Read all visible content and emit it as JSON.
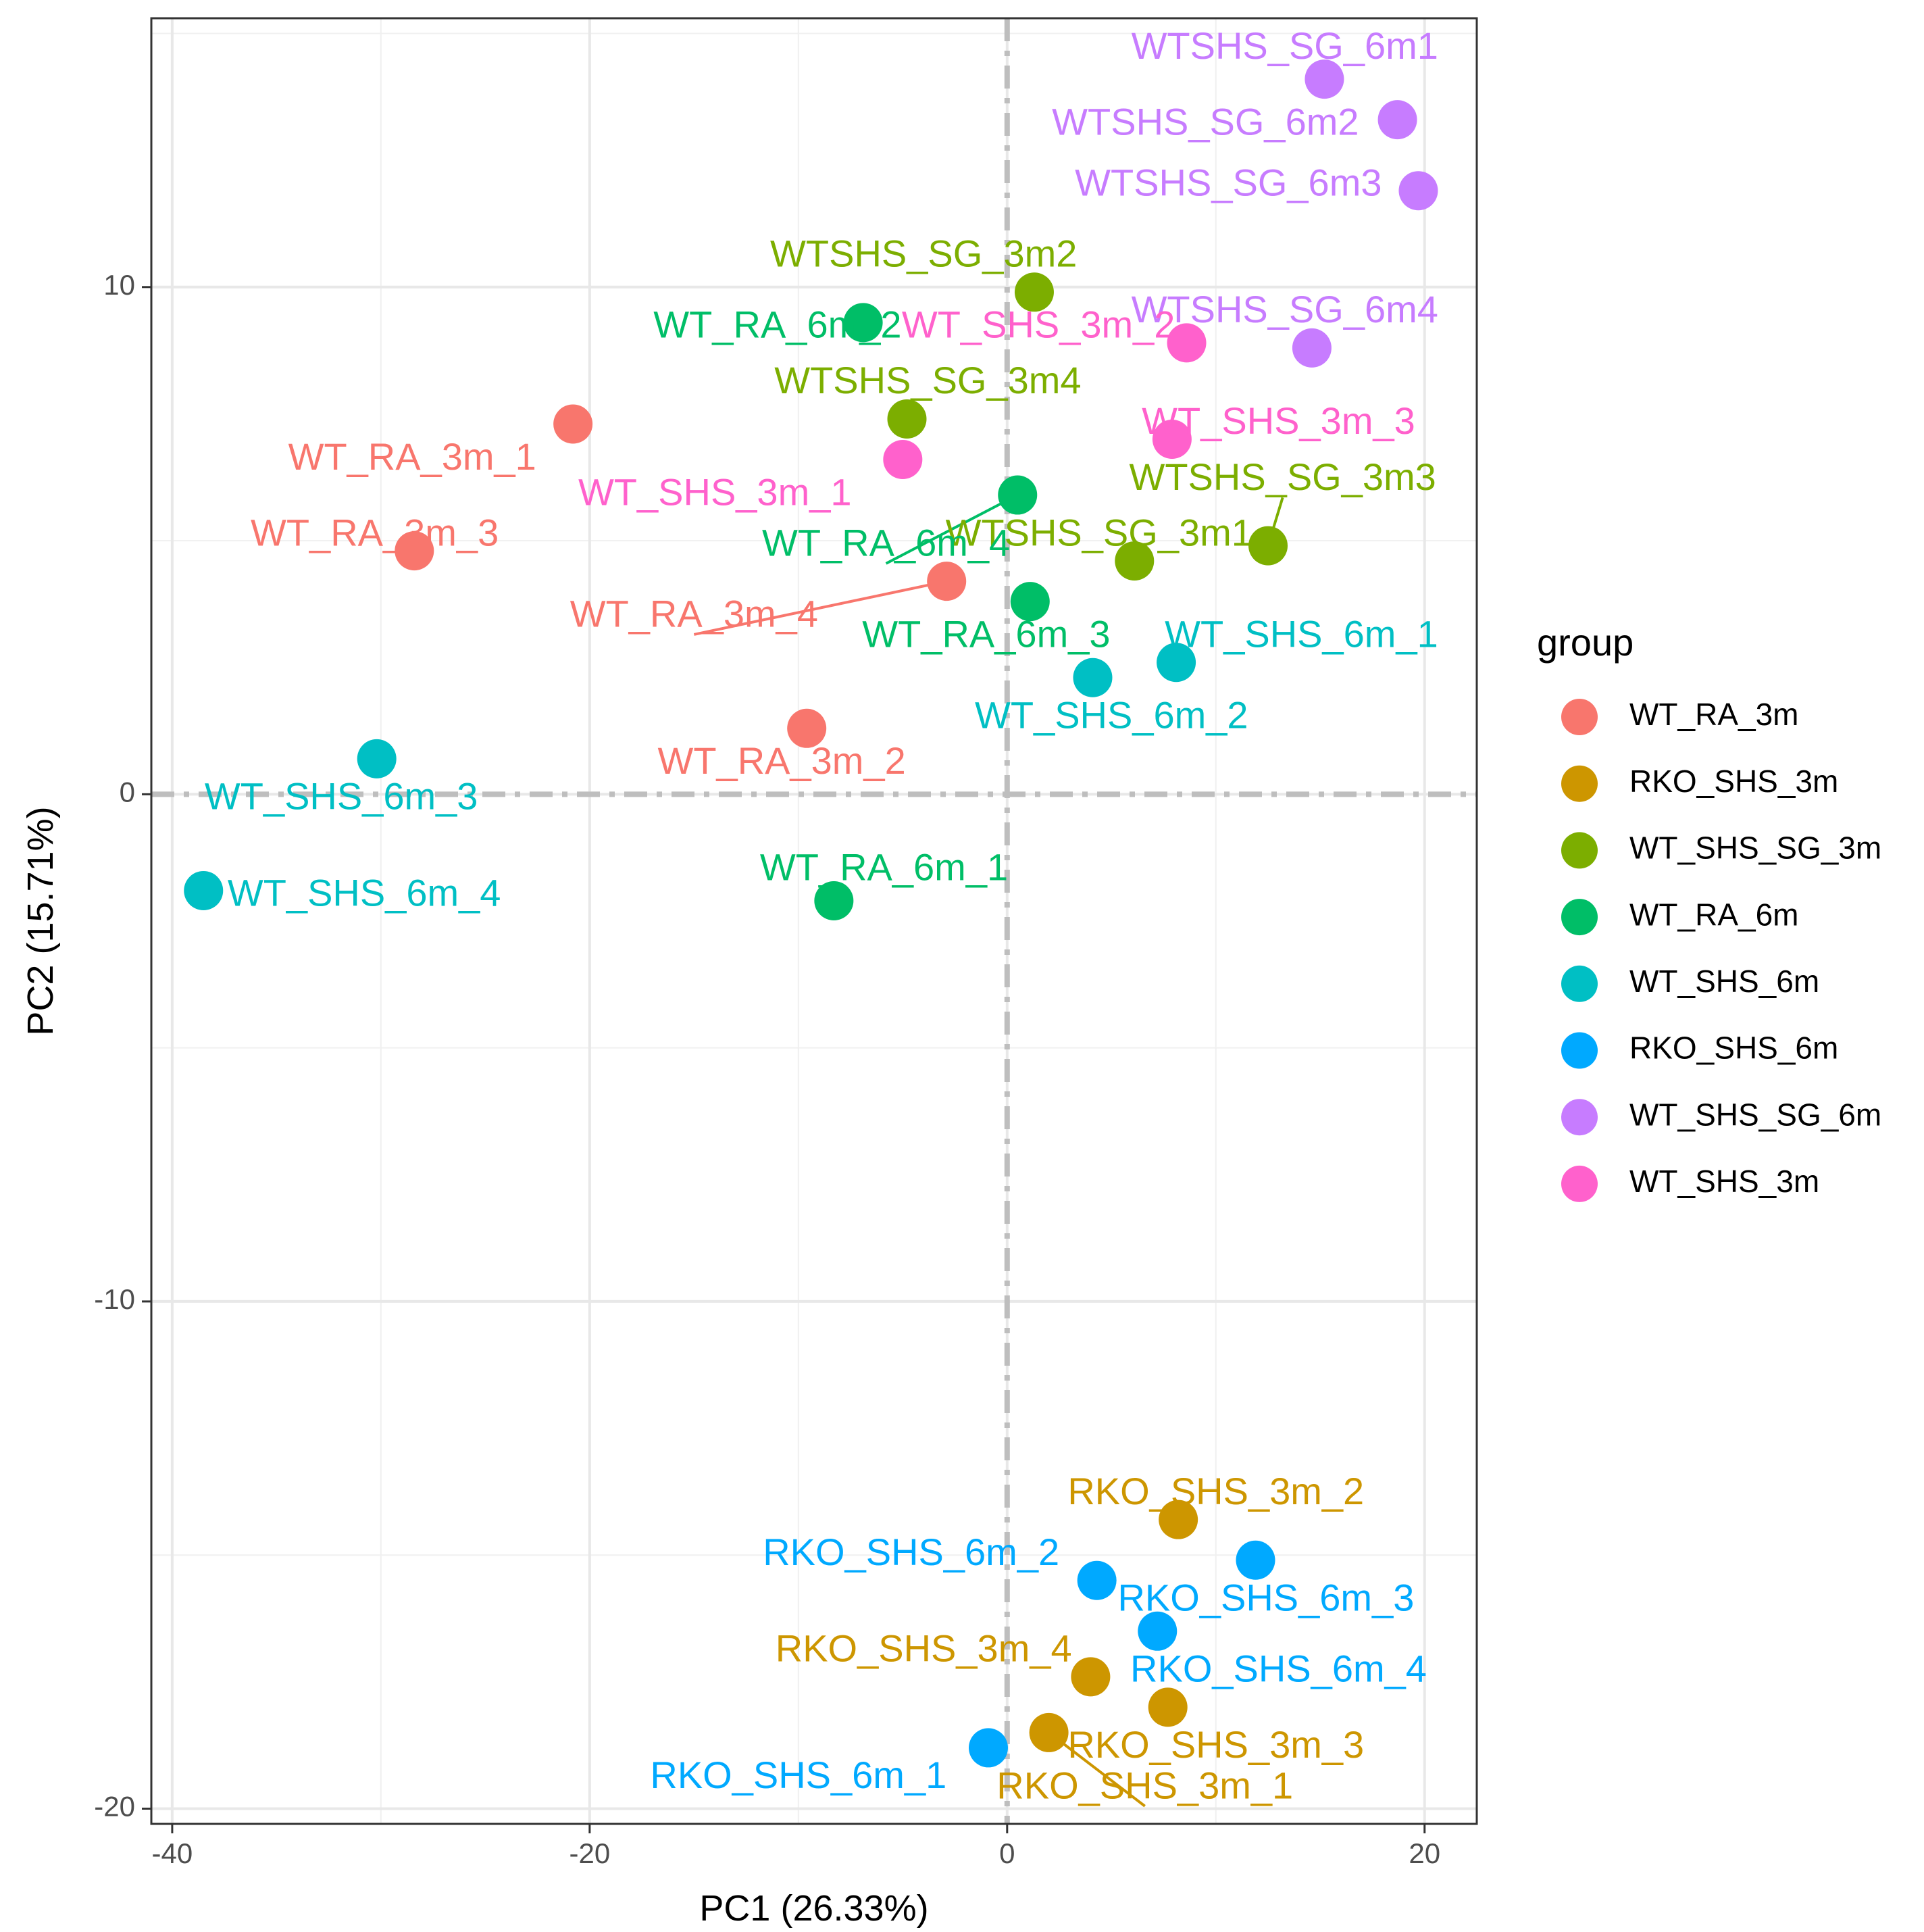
{
  "chart_data": {
    "type": "scatter",
    "title": "",
    "xlabel": "PC1 (26.33%)",
    "ylabel": "PC2 (15.71%)",
    "xlim": [
      -41,
      22.5
    ],
    "ylim": [
      -20.3,
      15.3
    ],
    "x_ticks": [
      -40,
      -20,
      0,
      20
    ],
    "x_tick_labels": [
      "-40",
      "-20",
      "0",
      "20"
    ],
    "y_ticks": [
      -20,
      -10,
      0,
      10
    ],
    "y_tick_labels": [
      "-20",
      "-10",
      "0",
      "10"
    ],
    "grid": true,
    "reference_lines": {
      "x": 0,
      "y": 0
    },
    "legend": {
      "title": "group",
      "position": "right",
      "entries": [
        {
          "label": "WT_RA_3m",
          "color": "#F8766D"
        },
        {
          "label": "RKO_SHS_3m",
          "color": "#CD9600"
        },
        {
          "label": "WT_SHS_SG_3m",
          "color": "#7CAE00"
        },
        {
          "label": "WT_RA_6m",
          "color": "#00BE67"
        },
        {
          "label": "WT_SHS_6m",
          "color": "#00BFC4"
        },
        {
          "label": "RKO_SHS_6m",
          "color": "#00A9FF"
        },
        {
          "label": "WT_SHS_SG_6m",
          "color": "#C77CFF"
        },
        {
          "label": "WT_SHS_3m",
          "color": "#FF61CC"
        }
      ]
    },
    "series": [
      {
        "name": "WT_RA_3m",
        "color": "#F8766D",
        "points": [
          {
            "x": -20.8,
            "y": 7.3,
            "label": "WT_RA_3m_1",
            "lx": -28.5,
            "ly": 6.6
          },
          {
            "x": -9.6,
            "y": 1.3,
            "label": "WT_RA_3m_2",
            "lx": -10.8,
            "ly": 0.6
          },
          {
            "x": -28.4,
            "y": 4.8,
            "label": "WT_RA_3m_3",
            "lx": -30.3,
            "ly": 5.1
          },
          {
            "x": -2.9,
            "y": 4.2,
            "label": "WT_RA_3m_4",
            "lx": -15.0,
            "ly": 3.5
          }
        ]
      },
      {
        "name": "RKO_SHS_3m",
        "color": "#CD9600",
        "points": [
          {
            "x": 2.0,
            "y": -18.5,
            "label": "RKO_SHS_3m_1",
            "lx": 6.6,
            "ly": -19.6
          },
          {
            "x": 8.2,
            "y": -14.3,
            "label": "RKO_SHS_3m_2",
            "lx": 10.0,
            "ly": -13.8
          },
          {
            "x": 7.7,
            "y": -18.0,
            "label": "RKO_SHS_3m_3",
            "lx": 10.0,
            "ly": -18.8
          },
          {
            "x": 4.0,
            "y": -17.4,
            "label": "RKO_SHS_3m_4",
            "lx": -4.0,
            "ly": -16.9
          }
        ]
      },
      {
        "name": "WT_SHS_SG_3m",
        "color": "#7CAE00",
        "points": [
          {
            "x": 6.1,
            "y": 4.6,
            "label": "WTSHS_SG_3m1",
            "lx": 4.4,
            "ly": 5.1
          },
          {
            "x": 1.3,
            "y": 9.9,
            "label": "WTSHS_SG_3m2",
            "lx": -4.0,
            "ly": 10.6
          },
          {
            "x": 12.5,
            "y": 4.9,
            "label": "WTSHS_SG_3m3",
            "lx": 13.2,
            "ly": 6.2
          },
          {
            "x": -4.8,
            "y": 7.4,
            "label": "WTSHS_SG_3m4",
            "lx": -3.8,
            "ly": 8.1
          }
        ]
      },
      {
        "name": "WT_RA_6m",
        "color": "#00BE67",
        "points": [
          {
            "x": -8.3,
            "y": -2.1,
            "label": "WT_RA_6m_1",
            "lx": -5.9,
            "ly": -1.5
          },
          {
            "x": -6.9,
            "y": 9.3,
            "label": "WT_RA_6m_2",
            "lx": -11.0,
            "ly": 9.2
          },
          {
            "x": 1.1,
            "y": 3.8,
            "label": "WT_RA_6m_3",
            "lx": -1.0,
            "ly": 3.1
          },
          {
            "x": 0.5,
            "y": 5.9,
            "label": "WT_RA_6m_4",
            "lx": -5.8,
            "ly": 4.9
          }
        ]
      },
      {
        "name": "WT_SHS_6m",
        "color": "#00BFC4",
        "points": [
          {
            "x": 8.1,
            "y": 2.6,
            "label": "WT_SHS_6m_1",
            "lx": 14.1,
            "ly": 3.1
          },
          {
            "x": 4.1,
            "y": 2.3,
            "label": "WT_SHS_6m_2",
            "lx": 5.0,
            "ly": 1.5
          },
          {
            "x": -30.2,
            "y": 0.7,
            "label": "WT_SHS_6m_3",
            "lx": -31.9,
            "ly": -0.1
          },
          {
            "x": -38.5,
            "y": -1.9,
            "label": "WT_SHS_6m_4",
            "lx": -30.8,
            "ly": -2.0
          }
        ]
      },
      {
        "name": "RKO_SHS_6m",
        "color": "#00A9FF",
        "points": [
          {
            "x": -0.9,
            "y": -18.8,
            "label": "RKO_SHS_6m_1",
            "lx": -10.0,
            "ly": -19.4
          },
          {
            "x": 4.3,
            "y": -15.5,
            "label": "RKO_SHS_6m_2",
            "lx": -4.6,
            "ly": -15.0
          },
          {
            "x": 11.9,
            "y": -15.1,
            "label": "RKO_SHS_6m_3",
            "lx": 12.4,
            "ly": -15.9
          },
          {
            "x": 7.2,
            "y": -16.5,
            "label": "RKO_SHS_6m_4",
            "lx": 13.0,
            "ly": -17.3
          }
        ]
      },
      {
        "name": "WT_SHS_SG_6m",
        "color": "#C77CFF",
        "points": [
          {
            "x": 15.2,
            "y": 14.1,
            "label": "WTSHS_SG_6m1",
            "lx": 13.3,
            "ly": 14.7
          },
          {
            "x": 18.7,
            "y": 13.3,
            "label": "WTSHS_SG_6m2",
            "lx": 9.5,
            "ly": 13.2
          },
          {
            "x": 19.7,
            "y": 11.9,
            "label": "WTSHS_SG_6m3",
            "lx": 10.6,
            "ly": 12.0
          },
          {
            "x": 14.6,
            "y": 8.8,
            "label": "WTSHS_SG_6m4",
            "lx": 13.3,
            "ly": 9.5
          }
        ]
      },
      {
        "name": "WT_SHS_3m",
        "color": "#FF61CC",
        "points": [
          {
            "x": -5.0,
            "y": 6.6,
            "label": "WT_SHS_3m_1",
            "lx": -14.0,
            "ly": 5.9
          },
          {
            "x": 8.6,
            "y": 8.9,
            "label": "WT_SHS_3m_2",
            "lx": 1.5,
            "ly": 9.2
          },
          {
            "x": 7.9,
            "y": 7.0,
            "label": "WT_SHS_3m_3",
            "lx": 13.0,
            "ly": 7.3
          },
          {
            "x": null,
            "y": null,
            "label": "",
            "lx": null,
            "ly": null
          }
        ]
      }
    ],
    "connectors": [
      {
        "label": "WT_RA_3m_4"
      },
      {
        "label": "RKO_SHS_3m_1"
      },
      {
        "label": "WTSHS_SG_3m3"
      },
      {
        "label": "WT_RA_6m_4"
      }
    ]
  }
}
